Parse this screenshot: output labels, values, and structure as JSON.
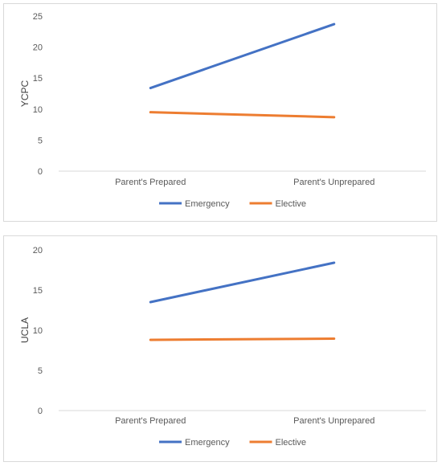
{
  "chart_data": [
    {
      "type": "line",
      "categories": [
        "Parent's Prepared",
        "Parent's Unprepared"
      ],
      "series": [
        {
          "name": "Emergency",
          "values": [
            13.4,
            23.7
          ],
          "color": "#4472C4"
        },
        {
          "name": "Elective",
          "values": [
            9.5,
            8.7
          ],
          "color": "#ED7D31"
        }
      ],
      "ylabel": "YCPC",
      "yticks": [
        0,
        5,
        10,
        15,
        20,
        25
      ],
      "ylim": [
        0,
        25
      ],
      "grid": false,
      "legend": "bottom"
    },
    {
      "type": "line",
      "categories": [
        "Parent's Prepared",
        "Parent's Unprepared"
      ],
      "series": [
        {
          "name": "Emergency",
          "values": [
            13.5,
            18.4
          ],
          "color": "#4472C4"
        },
        {
          "name": "Elective",
          "values": [
            8.8,
            8.95
          ],
          "color": "#ED7D31"
        }
      ],
      "ylabel": "UCLA",
      "yticks": [
        0,
        5,
        10,
        15,
        20
      ],
      "ylim": [
        0,
        20
      ],
      "grid": false,
      "legend": "bottom"
    }
  ]
}
